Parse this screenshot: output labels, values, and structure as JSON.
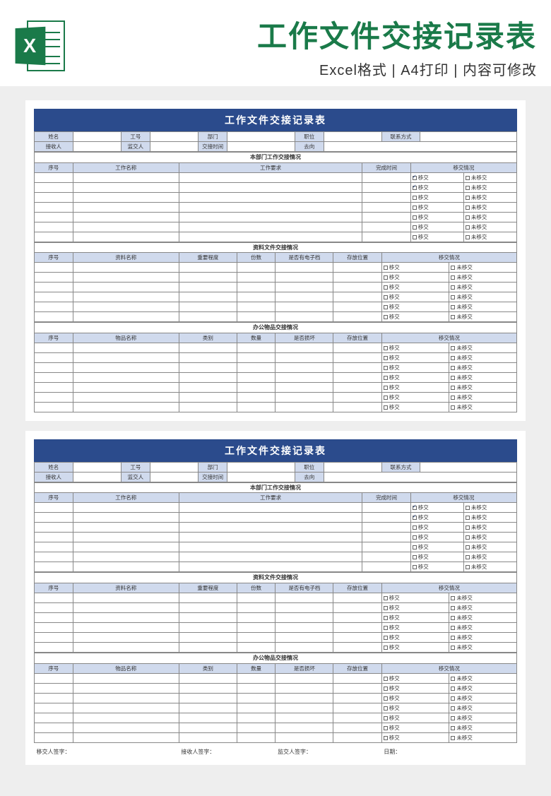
{
  "header": {
    "title": "工作文件交接记录表",
    "subtitle": "Excel格式 | A4打印 | 内容可修改",
    "iconLetter": "X"
  },
  "colors": {
    "brand": "#1a7a49",
    "formHeader": "#2b4b8c",
    "labelBg": "#d0daed",
    "border": "#888888",
    "pageBg": "#eeeeee",
    "sheetBg": "#ffffff"
  },
  "form": {
    "title": "工作文件交接记录表",
    "infoRow1": {
      "c1": "姓名",
      "c2": "工号",
      "c3": "部门",
      "c4": "职位",
      "c5": "联系方式"
    },
    "infoRow2": {
      "c1": "接收人",
      "c2": "监交人",
      "c3": "交接时间",
      "c4": "去向"
    },
    "section1": {
      "title": "本部门工作交接情况",
      "cols": {
        "c1": "序号",
        "c2": "工作名称",
        "c3": "工作要求",
        "c4": "完成时间",
        "c5": "移交情况"
      },
      "status": {
        "a": "移交",
        "b": "未移交"
      },
      "rowCount": 7,
      "checkedRows": [
        0,
        1
      ]
    },
    "section2": {
      "title": "资料文件交接情况",
      "cols": {
        "c1": "序号",
        "c2": "资料名称",
        "c3": "重要程度",
        "c4": "份数",
        "c5": "是否有电子档",
        "c6": "存放位置",
        "c7": "移交情况"
      },
      "status": {
        "a": "移交",
        "b": "未移交"
      },
      "rowCount": 6
    },
    "section3": {
      "title": "办公物品交接情况",
      "cols": {
        "c1": "序号",
        "c2": "物品名称",
        "c3": "类别",
        "c4": "数量",
        "c5": "是否损坏",
        "c6": "存放位置",
        "c7": "移交情况"
      },
      "status": {
        "a": "移交",
        "b": "未移交"
      },
      "rowCount": 7
    },
    "signatures": {
      "s1": "移交人签字：",
      "s2": "接收人签字：",
      "s3": "监交人签字：",
      "s4": "日期："
    }
  }
}
